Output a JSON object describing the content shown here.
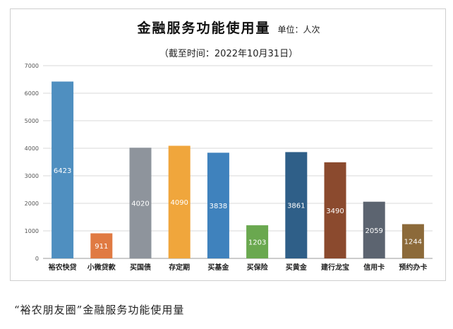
{
  "chart_data": {
    "type": "bar",
    "title": "金融服务功能使用量",
    "unit_label": "单位：人次",
    "subtitle": "（截至时间：2022年10月31日）",
    "categories": [
      "裕农快贷",
      "小微贷款",
      "买国债",
      "存定期",
      "买基金",
      "买保险",
      "买黄金",
      "建行龙宝",
      "信用卡",
      "预约办卡"
    ],
    "values": [
      6423,
      911,
      4020,
      4090,
      3838,
      1203,
      3861,
      3490,
      2059,
      1244
    ],
    "value_labels": [
      "6423",
      "911",
      "4020",
      "4090",
      "3838",
      "1203",
      "3861",
      "3490",
      "2059",
      "1244"
    ],
    "colors": [
      "#4f8fc0",
      "#e07a42",
      "#8e949c",
      "#f0a63c",
      "#3f82bd",
      "#6aa84f",
      "#2f5f88",
      "#8b4a2e",
      "#5c6470",
      "#8c6a3a"
    ],
    "yticks": [
      "0",
      "1000",
      "2000",
      "3000",
      "4000",
      "5000",
      "6000",
      "7000"
    ],
    "ylim": [
      0,
      7000
    ],
    "grid": true,
    "legend": "none"
  },
  "caption": "“裕农朋友圈”金融服务功能使用量"
}
